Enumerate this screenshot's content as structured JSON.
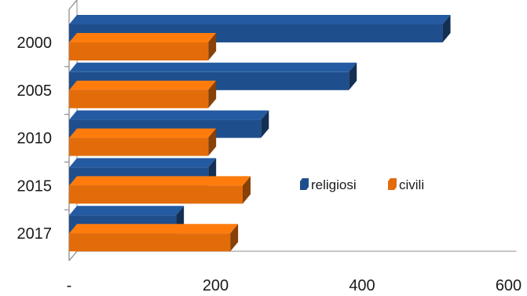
{
  "chart_data": {
    "type": "bar",
    "orientation": "horizontal",
    "style": "3d",
    "categories": [
      "2000",
      "2005",
      "2010",
      "2015",
      "2017"
    ],
    "series": [
      {
        "name": "religiosi",
        "color": "#1F4E8C",
        "values": [
          510,
          382,
          262,
          190,
          146
        ]
      },
      {
        "name": "civili",
        "color": "#E36C0A",
        "values": [
          190,
          190,
          190,
          237,
          220
        ]
      }
    ],
    "xlim": [
      0,
      600
    ],
    "xticks": [
      "-",
      "200",
      "400",
      "600"
    ],
    "xlabel": "",
    "ylabel": "",
    "grid": false,
    "legend_position": "right-middle"
  }
}
